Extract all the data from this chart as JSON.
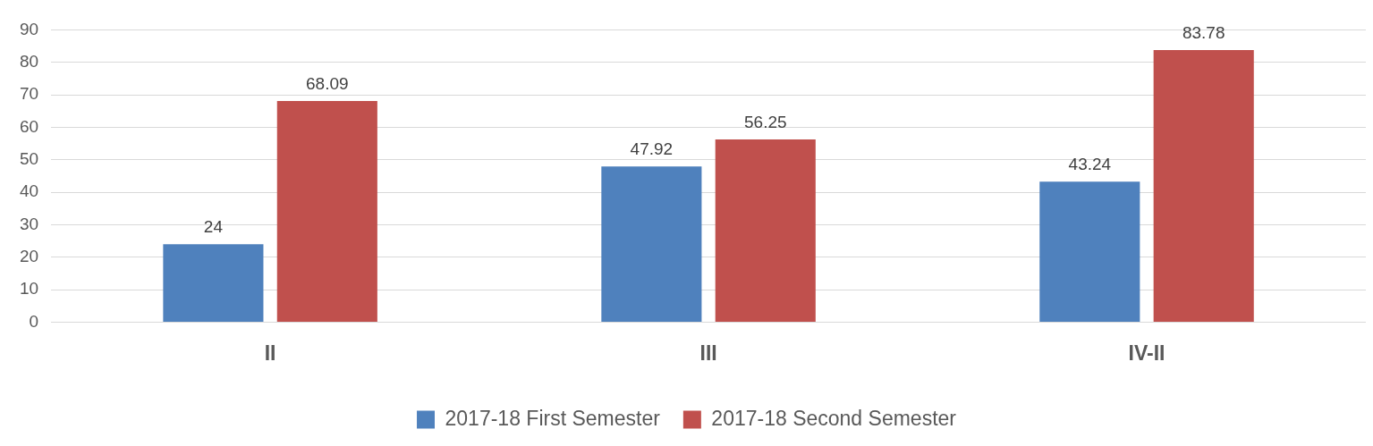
{
  "chart_data": {
    "type": "bar",
    "categories": [
      "II",
      "III",
      "IV-II"
    ],
    "series": [
      {
        "name": "2017-18 First Semester",
        "color": "#4f81bd",
        "values": [
          24,
          47.92,
          43.24
        ]
      },
      {
        "name": "2017-18 Second Semester",
        "color": "#c0504d",
        "values": [
          68.09,
          56.25,
          83.78
        ]
      }
    ],
    "ylim": [
      0,
      90
    ],
    "yticks": [
      0,
      10,
      20,
      30,
      40,
      50,
      60,
      70,
      80,
      90
    ],
    "grid": "y",
    "legend": "bottom",
    "data_labels": true
  }
}
